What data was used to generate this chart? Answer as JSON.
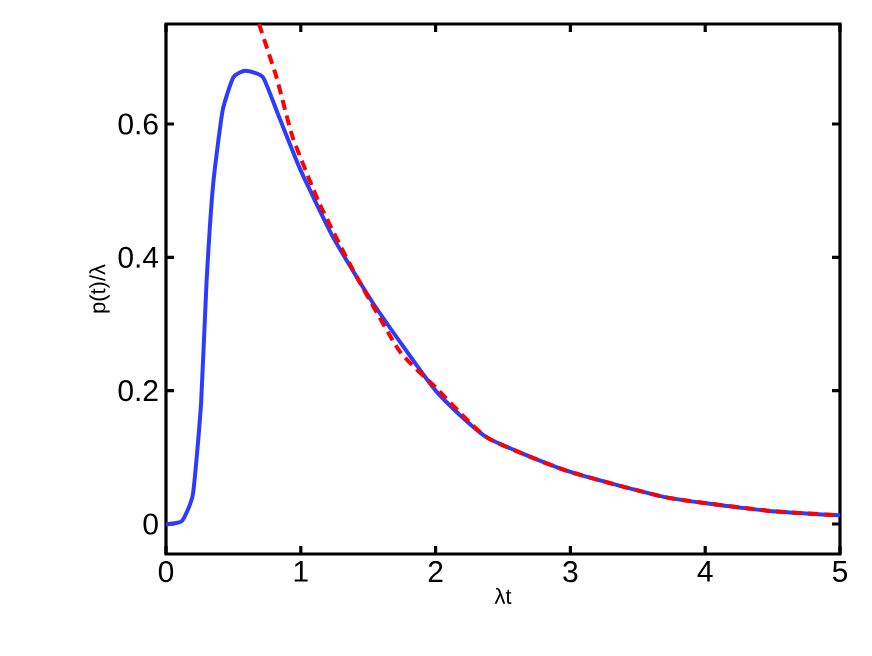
{
  "chart_data": {
    "type": "line",
    "xlabel": "λt",
    "ylabel": "p(t)/λ",
    "xlim": [
      0,
      5
    ],
    "ylim": [
      -0.045,
      0.75
    ],
    "xticks": [
      0,
      1,
      2,
      3,
      4,
      5
    ],
    "yticks": [
      0,
      0.2,
      0.4,
      0.6
    ],
    "grid": false,
    "marker": "none",
    "series": [
      {
        "color": "#2b3cff",
        "line_style": "solid",
        "x": [
          0,
          0.02,
          0.12,
          0.2,
          0.26,
          0.3,
          0.35,
          0.42,
          0.5,
          0.59,
          0.72,
          0.84,
          1,
          1.24,
          1.54,
          2,
          2.38,
          2.97,
          3.71,
          4.46,
          5
        ],
        "values": [
          0,
          0,
          0.005,
          0.045,
          0.18,
          0.36,
          0.51,
          0.62,
          0.67,
          0.68,
          0.67,
          0.61,
          0.53,
          0.43,
          0.33,
          0.2,
          0.13,
          0.08,
          0.04,
          0.02,
          0.013
        ]
      },
      {
        "color": "#ff0000",
        "line_style": "dashed",
        "x": [
          0.69,
          0.82,
          0.94,
          1.14,
          1.39,
          1.73,
          2,
          2.38,
          2.97,
          3.71,
          4.46,
          5
        ],
        "values": [
          0.75,
          0.67,
          0.58,
          0.48,
          0.38,
          0.26,
          0.205,
          0.13,
          0.08,
          0.04,
          0.02,
          0.013
        ]
      }
    ]
  }
}
